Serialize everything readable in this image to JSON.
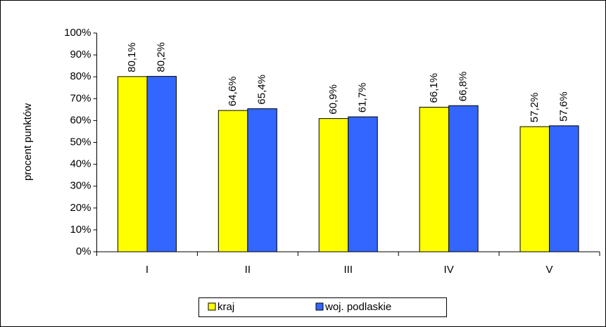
{
  "chart_data": {
    "type": "bar",
    "y_label": "procent punktów",
    "categories": [
      "I",
      "II",
      "III",
      "IV",
      "V"
    ],
    "series": [
      {
        "name": "kraj",
        "color": "#ffff00",
        "values": [
          80.1,
          64.6,
          60.9,
          66.1,
          57.2
        ],
        "value_labels": [
          "80,1%",
          "64,6%",
          "60,9%",
          "66,1%",
          "57,2%"
        ]
      },
      {
        "name": "woj. podlaskie",
        "color": "#3366ff",
        "values": [
          80.2,
          65.4,
          61.7,
          66.8,
          57.6
        ],
        "value_labels": [
          "80,2%",
          "65,4%",
          "61,7%",
          "66,8%",
          "57,6%"
        ]
      }
    ],
    "ylim": [
      0,
      100
    ],
    "yticks": [
      {
        "value": 0,
        "label": "0%"
      },
      {
        "value": 10,
        "label": "10%"
      },
      {
        "value": 20,
        "label": "20%"
      },
      {
        "value": 30,
        "label": "30%"
      },
      {
        "value": 40,
        "label": "40%"
      },
      {
        "value": 50,
        "label": "50%"
      },
      {
        "value": 60,
        "label": "60%"
      },
      {
        "value": 70,
        "label": "70%"
      },
      {
        "value": 80,
        "label": "80%"
      },
      {
        "value": 90,
        "label": "90%"
      },
      {
        "value": 100,
        "label": "100%"
      }
    ],
    "legend": "bottom"
  }
}
